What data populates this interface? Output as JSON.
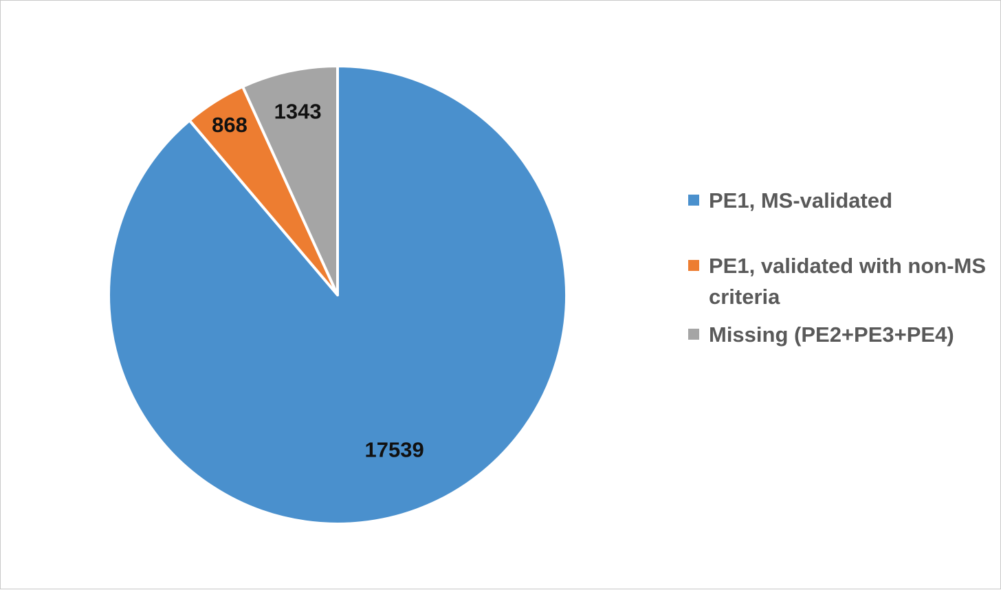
{
  "chart_data": {
    "type": "pie",
    "start_angle": "12 o'clock",
    "direction": "clockwise",
    "legend_position": "right",
    "slices": [
      {
        "label": "PE1, MS-validated",
        "value": 17539,
        "data_label": "17539",
        "color": "#4A90CD"
      },
      {
        "label": "PE1, validated with non-MS criteria",
        "value": 868,
        "data_label": "868",
        "color": "#ED7D31"
      },
      {
        "label": "Missing (PE2+PE3+PE4)",
        "value": 1343,
        "data_label": "1343",
        "color": "#A5A5A5"
      }
    ]
  },
  "legend": {
    "items": [
      {
        "label": "PE1, MS-validated"
      },
      {
        "label": "PE1, validated with non-MS criteria"
      },
      {
        "label": "Missing (PE2+PE3+PE4)"
      }
    ]
  }
}
